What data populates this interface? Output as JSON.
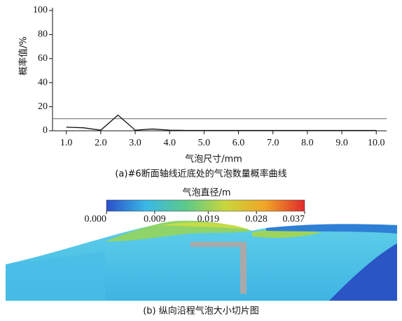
{
  "chart_data": [
    {
      "type": "line",
      "title": "(a)#6断面轴线近底处的气泡数量概率曲线",
      "x_label": "气泡尺寸/mm",
      "y_label": "概率值/%",
      "x": [
        1.0,
        1.5,
        2.0,
        2.5,
        3.0,
        3.5,
        4.0,
        4.5,
        5.0,
        5.5,
        6.0,
        6.5,
        7.0,
        7.5,
        8.0,
        8.5,
        9.0,
        9.5,
        10.0
      ],
      "series": [
        {
          "color": "#111111",
          "values": [
            3,
            2.5,
            0.5,
            13,
            0.5,
            1.5,
            0.5,
            0.3,
            0.3,
            0.3,
            0.3,
            0.3,
            0.3,
            0.3,
            0.3,
            0.3,
            0.3,
            0.3,
            0.3
          ]
        }
      ],
      "hline": 10,
      "xlim": [
        0.6,
        10.3
      ],
      "ylim": [
        0,
        100
      ],
      "xticks": [
        {
          "value": 1,
          "label": "1.0"
        },
        {
          "value": 2,
          "label": "2.0"
        },
        {
          "value": 3,
          "label": "3.0"
        },
        {
          "value": 4,
          "label": "4.0"
        },
        {
          "value": 5,
          "label": "5.0"
        },
        {
          "value": 6,
          "label": "6.0"
        },
        {
          "value": 7,
          "label": "7.0"
        },
        {
          "value": 8,
          "label": "8.0"
        },
        {
          "value": 9,
          "label": "9.0"
        },
        {
          "value": 10,
          "label": "10.0"
        }
      ],
      "yticks": [
        0,
        20,
        40,
        60,
        80,
        100
      ]
    },
    {
      "type": "colorbar",
      "title": "气泡直径/m",
      "caption": "(b) 纵向沿程气泡大小切片图",
      "lim": [
        0,
        0.037
      ],
      "ticks": [
        {
          "value": 0,
          "label": "0.000"
        },
        0.009,
        0.019,
        0.028,
        0.037
      ],
      "colors": [
        "#2b4fc9",
        "#39b8e6",
        "#5cc98a",
        "#c9d63c",
        "#f0a528",
        "#e02a2a"
      ]
    }
  ]
}
